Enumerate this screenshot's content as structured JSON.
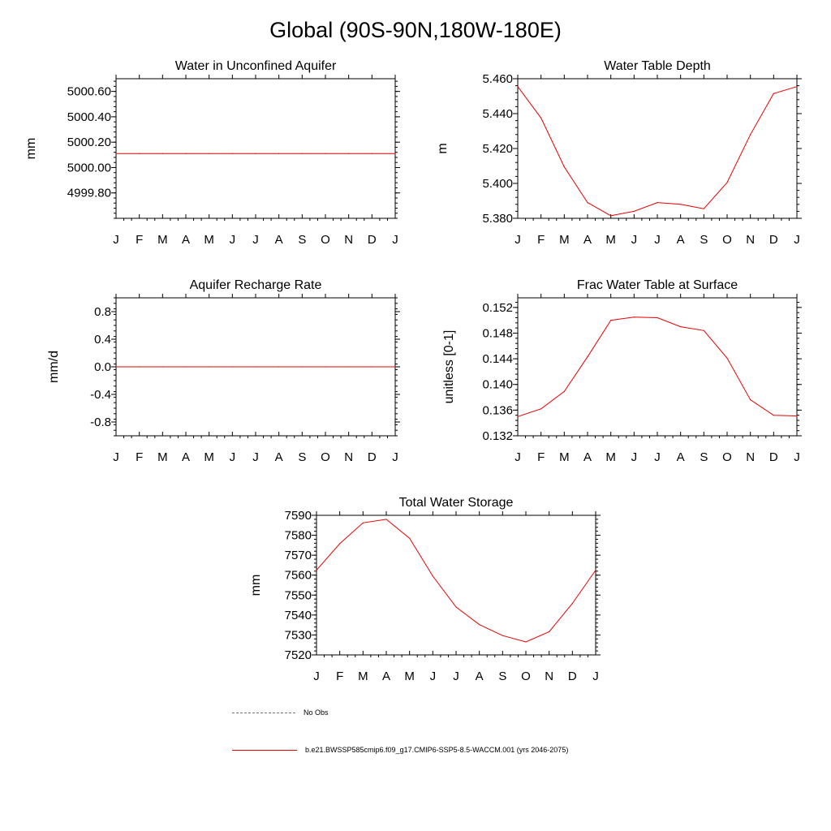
{
  "title": "Global (90S-90N,180W-180E)",
  "colors": {
    "model_line": "#e60000",
    "obs_line": "#777777",
    "axis": "#000000"
  },
  "legend": {
    "obs_label": "No Obs",
    "model_label": "b.e21.BWSSP585cmip6.f09_g17.CMIP6-SSP5-8.5-WACCM.001 (yrs 2046-2075)"
  },
  "chart_data": [
    {
      "id": "aquifer",
      "type": "line",
      "title": "Water in Unconfined Aquifer",
      "ylabel": "mm",
      "xlabel": "",
      "categories": [
        "J",
        "F",
        "M",
        "A",
        "M",
        "J",
        "J",
        "A",
        "S",
        "O",
        "N",
        "D",
        "J"
      ],
      "ylim": [
        4999.6,
        5000.7
      ],
      "yticks": [
        4999.8,
        5000.0,
        5000.2,
        5000.4,
        5000.6
      ],
      "ytick_labels": [
        "4999.80",
        "5000.00",
        "5000.20",
        "5000.40",
        "5000.60"
      ],
      "series": [
        {
          "name": "model",
          "values": [
            5000.11,
            5000.11,
            5000.11,
            5000.11,
            5000.11,
            5000.11,
            5000.11,
            5000.11,
            5000.11,
            5000.11,
            5000.11,
            5000.11,
            5000.11
          ]
        }
      ]
    },
    {
      "id": "wtd",
      "type": "line",
      "title": "Water Table Depth",
      "ylabel": "m",
      "xlabel": "",
      "categories": [
        "J",
        "F",
        "M",
        "A",
        "M",
        "J",
        "J",
        "A",
        "S",
        "O",
        "N",
        "D",
        "J"
      ],
      "ylim": [
        5.38,
        5.46
      ],
      "yticks": [
        5.38,
        5.4,
        5.42,
        5.44,
        5.46
      ],
      "ytick_labels": [
        "5.380",
        "5.400",
        "5.420",
        "5.440",
        "5.460"
      ],
      "series": [
        {
          "name": "model",
          "values": [
            5.4555,
            5.4375,
            5.4095,
            5.389,
            5.3815,
            5.384,
            5.389,
            5.388,
            5.3855,
            5.4005,
            5.428,
            5.4515,
            5.4555
          ]
        }
      ]
    },
    {
      "id": "recharge",
      "type": "line",
      "title": "Aquifer Recharge Rate",
      "ylabel": "mm/d",
      "xlabel": "",
      "categories": [
        "J",
        "F",
        "M",
        "A",
        "M",
        "J",
        "J",
        "A",
        "S",
        "O",
        "N",
        "D",
        "J"
      ],
      "ylim": [
        -1.0,
        1.0
      ],
      "yticks": [
        -0.8,
        -0.4,
        0.0,
        0.4,
        0.8
      ],
      "ytick_labels": [
        "-0.8",
        "-0.4",
        "0.0",
        "0.4",
        "0.8"
      ],
      "series": [
        {
          "name": "model",
          "values": [
            0,
            0,
            0,
            0,
            0,
            0,
            0,
            0,
            0,
            0,
            0,
            0,
            0
          ]
        }
      ]
    },
    {
      "id": "frac",
      "type": "line",
      "title": "Frac Water Table at Surface",
      "ylabel": "unitless [0-1]",
      "xlabel": "",
      "categories": [
        "J",
        "F",
        "M",
        "A",
        "M",
        "J",
        "J",
        "A",
        "S",
        "O",
        "N",
        "D",
        "J"
      ],
      "ylim": [
        0.132,
        0.1535
      ],
      "yticks": [
        0.132,
        0.136,
        0.14,
        0.144,
        0.148,
        0.152
      ],
      "ytick_labels": [
        "0.132",
        "0.136",
        "0.140",
        "0.144",
        "0.148",
        "0.152"
      ],
      "series": [
        {
          "name": "model",
          "values": [
            0.135,
            0.1362,
            0.1389,
            0.1443,
            0.15,
            0.1505,
            0.1504,
            0.149,
            0.1484,
            0.1441,
            0.1376,
            0.1352,
            0.1351
          ]
        }
      ]
    },
    {
      "id": "tws",
      "type": "line",
      "title": "Total Water Storage",
      "ylabel": "mm",
      "xlabel": "",
      "categories": [
        "J",
        "F",
        "M",
        "A",
        "M",
        "J",
        "J",
        "A",
        "S",
        "O",
        "N",
        "D",
        "J"
      ],
      "ylim": [
        7520,
        7590
      ],
      "yticks": [
        7520,
        7530,
        7540,
        7550,
        7560,
        7570,
        7580,
        7590
      ],
      "ytick_labels": [
        "7520",
        "7530",
        "7540",
        "7550",
        "7560",
        "7570",
        "7580",
        "7590"
      ],
      "series": [
        {
          "name": "model",
          "values": [
            7562.5,
            7575.8,
            7586.2,
            7588.0,
            7578.5,
            7559.5,
            7544.0,
            7535.2,
            7529.7,
            7526.5,
            7531.6,
            7545.8,
            7562.5
          ]
        }
      ]
    }
  ]
}
